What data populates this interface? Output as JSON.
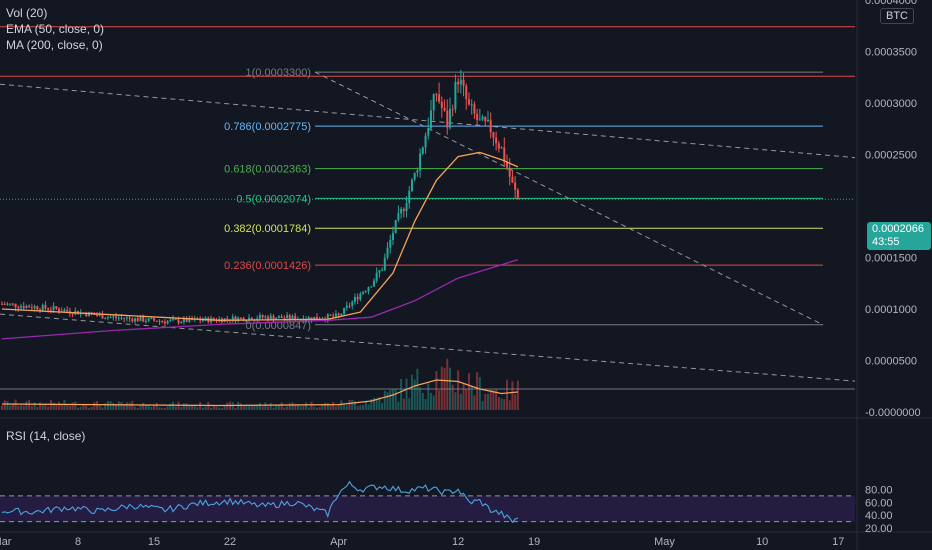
{
  "legend": {
    "vol": "Vol (20)",
    "ema": "EMA (50, close, 0)",
    "ma": "MA (200, close, 0)",
    "rsi": "RSI (14, close)"
  },
  "currency_badge": "BTC",
  "last_price": {
    "value": "0.0002066",
    "countdown": "43:55",
    "color": "#26a69a"
  },
  "colors": {
    "bg": "#131722",
    "grid": "#1e222d",
    "axis_text": "#b2b5be",
    "up": "#26a69a",
    "down": "#ef5350",
    "ema": "#f7a35c",
    "ma": "#9c27b0",
    "rsi": "#4fa3e0",
    "rsi_band": "#2a1e4a",
    "res_red": "#e04848",
    "trend": "#9598a1"
  },
  "chart_data": {
    "type": "candlestick",
    "price_axis": {
      "ticks": [
        "0.0004000",
        "0.0003500",
        "0.0003000",
        "0.0002500",
        "0.0001500",
        "0.0001000",
        "0.0000500",
        "-0.0000000"
      ],
      "values": [
        0.0004,
        0.00035,
        0.0003,
        0.00025,
        0.00015,
        0.0001,
        5e-05,
        0.0
      ]
    },
    "rsi_axis": {
      "ticks": [
        "80.00",
        "60.00",
        "40.00",
        "20.00"
      ],
      "values": [
        80,
        60,
        40,
        20
      ],
      "band": [
        30,
        70
      ]
    },
    "time_axis": {
      "ticks": [
        "Mar",
        "8",
        "15",
        "22",
        "Apr",
        "12",
        "19",
        "May",
        "10",
        "17"
      ],
      "days": [
        0,
        7,
        14,
        21,
        31,
        42,
        49,
        61,
        70,
        77
      ]
    },
    "fib_levels": [
      {
        "label": "1(0.0003300)",
        "value": 0.00033,
        "color": "#787b86"
      },
      {
        "label": "0.786(0.0002775)",
        "value": 0.0002775,
        "color": "#64b5f6"
      },
      {
        "label": "0.618(0.0002363)",
        "value": 0.0002363,
        "color": "#4caf50"
      },
      {
        "label": "0.5(0.0002074)",
        "value": 0.0002074,
        "color": "#26c281"
      },
      {
        "label": "0.382(0.0001784)",
        "value": 0.0001784,
        "color": "#d4e157"
      },
      {
        "label": "0.236(0.0001426)",
        "value": 0.0001426,
        "color": "#e04848"
      },
      {
        "label": "0(0.0000847)",
        "value": 8.47e-05,
        "color": "#787b86"
      }
    ],
    "resistance_lines": [
      0.000374,
      0.000326
    ],
    "price_series": [
      [
        0,
        0.000105
      ],
      [
        5,
        0.0001
      ],
      [
        10,
        9.2e-05
      ],
      [
        15,
        8.8e-05
      ],
      [
        20,
        9e-05
      ],
      [
        24,
        9.2e-05
      ],
      [
        28,
        9.1e-05
      ],
      [
        31,
        9.3e-05
      ],
      [
        33,
        0.000115
      ],
      [
        34,
        0.000125
      ],
      [
        35,
        0.00014
      ],
      [
        36,
        0.000175
      ],
      [
        37,
        0.0002
      ],
      [
        38,
        0.00023
      ],
      [
        39,
        0.00027
      ],
      [
        40,
        0.00031
      ],
      [
        41,
        0.00028
      ],
      [
        42,
        0.000325
      ],
      [
        43,
        0.000295
      ],
      [
        44,
        0.00028
      ],
      [
        45,
        0.000275
      ],
      [
        46,
        0.000255
      ],
      [
        47,
        0.00022
      ],
      [
        47.5,
        0.0002066
      ]
    ],
    "ema50": [
      [
        0,
        0.0001
      ],
      [
        20,
        8.9e-05
      ],
      [
        30,
        9e-05
      ],
      [
        33,
        9.7e-05
      ],
      [
        36,
        0.000135
      ],
      [
        38,
        0.000185
      ],
      [
        40,
        0.000225
      ],
      [
        42,
        0.000248
      ],
      [
        44,
        0.000252
      ],
      [
        46,
        0.000245
      ],
      [
        47.5,
        0.000238
      ]
    ],
    "ma200": [
      [
        0,
        7.1e-05
      ],
      [
        10,
        7.9e-05
      ],
      [
        20,
        8.5e-05
      ],
      [
        30,
        8.9e-05
      ],
      [
        34,
        9.2e-05
      ],
      [
        38,
        0.000108
      ],
      [
        42,
        0.00013
      ],
      [
        46,
        0.000143
      ],
      [
        47.5,
        0.000148
      ]
    ],
    "vol_ma": [
      [
        0,
        0.2
      ],
      [
        20,
        0.15
      ],
      [
        31,
        0.18
      ],
      [
        34,
        0.3
      ],
      [
        36,
        0.5
      ],
      [
        38,
        0.8
      ],
      [
        40,
        1.0
      ],
      [
        42,
        0.95
      ],
      [
        44,
        0.7
      ],
      [
        46,
        0.55
      ],
      [
        47.5,
        0.6
      ]
    ],
    "rsi_series": [
      [
        0,
        47
      ],
      [
        3,
        45
      ],
      [
        6,
        52
      ],
      [
        9,
        46
      ],
      [
        12,
        55
      ],
      [
        15,
        48
      ],
      [
        18,
        58
      ],
      [
        21,
        62
      ],
      [
        24,
        54
      ],
      [
        27,
        60
      ],
      [
        30,
        42
      ],
      [
        31,
        75
      ],
      [
        32,
        88
      ],
      [
        33,
        80
      ],
      [
        35,
        85
      ],
      [
        37,
        78
      ],
      [
        39,
        82
      ],
      [
        41,
        75
      ],
      [
        42,
        80
      ],
      [
        43,
        60
      ],
      [
        44,
        62
      ],
      [
        45,
        48
      ],
      [
        46,
        42
      ],
      [
        47,
        30
      ],
      [
        47.5,
        37
      ]
    ]
  }
}
